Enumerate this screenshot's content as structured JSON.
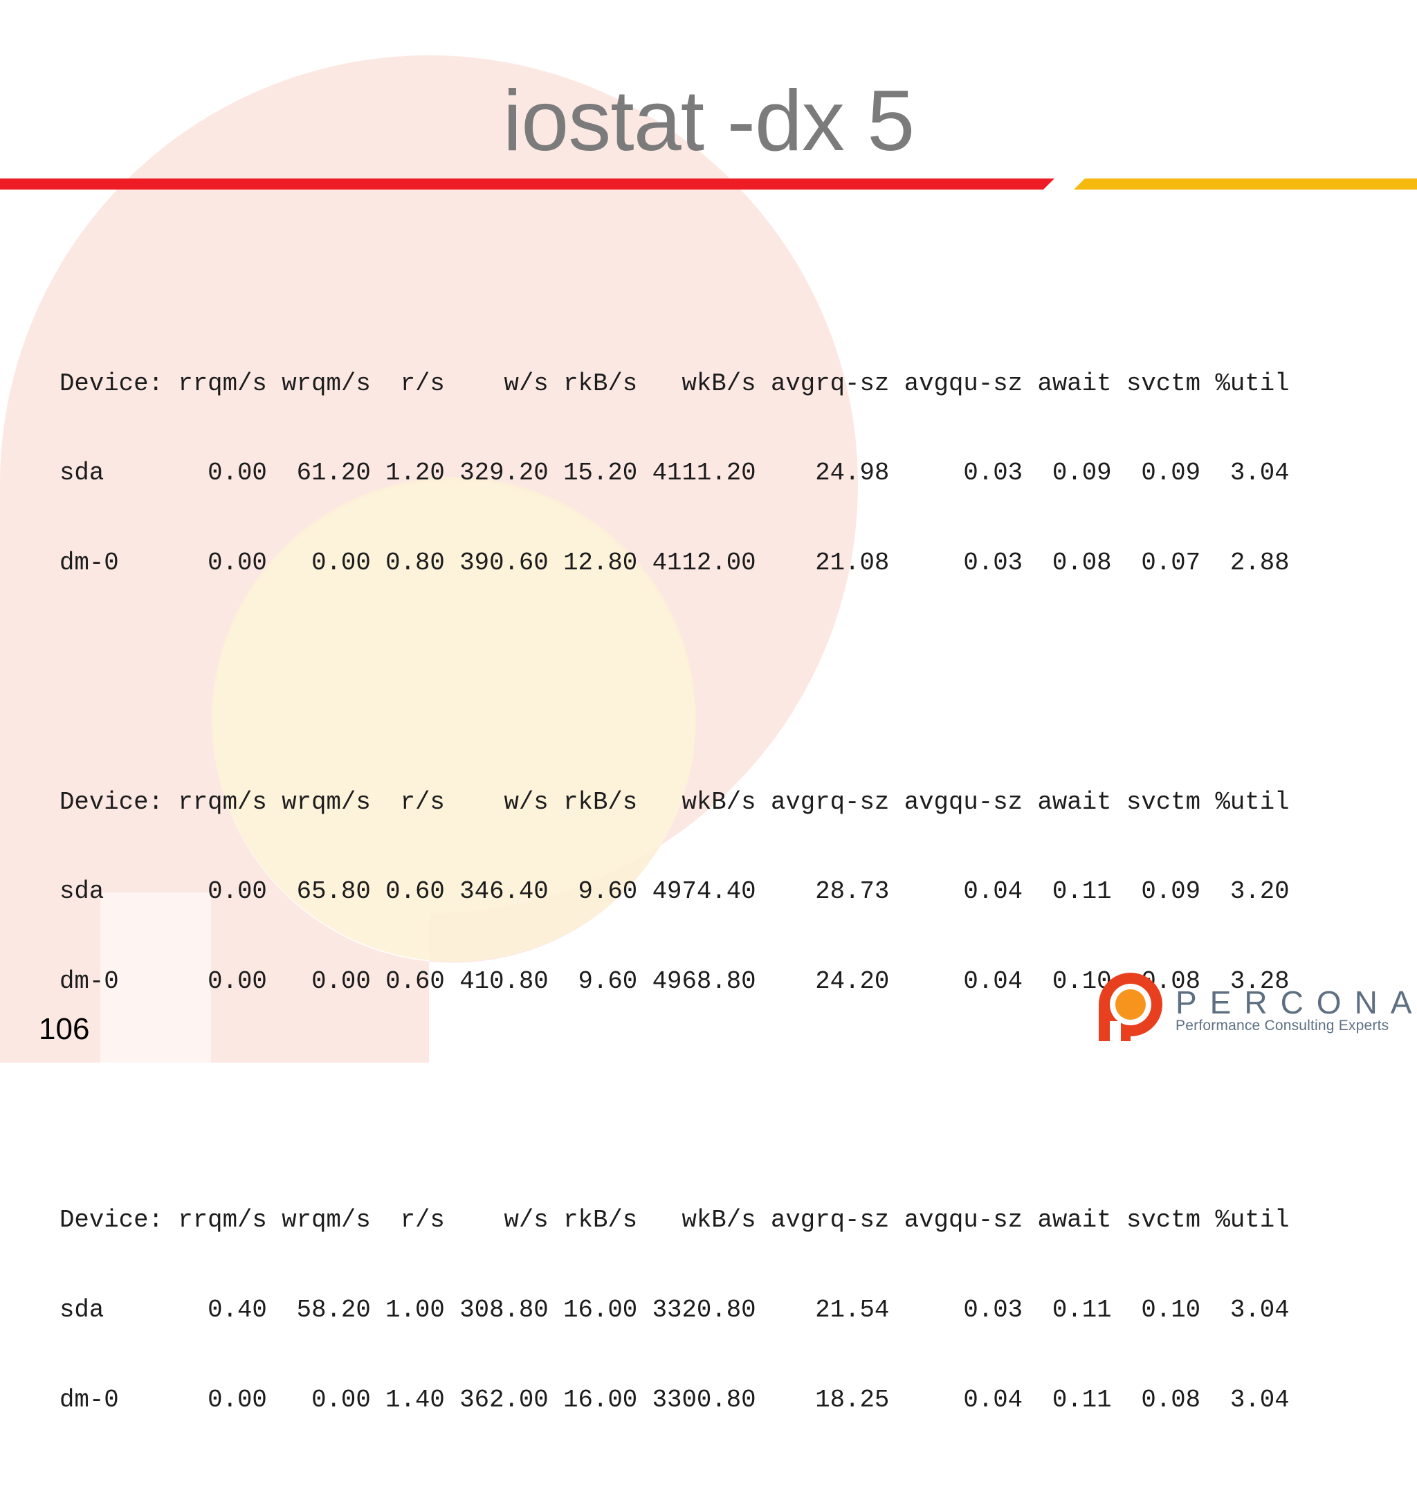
{
  "slide": {
    "title": "iostat -dx 5",
    "page_number": "106"
  },
  "console": {
    "blocks": [
      {
        "lines": [
          "Device: rrqm/s wrqm/s  r/s    w/s rkB/s   wkB/s avgrq-sz avgqu-sz await svctm %util",
          "sda       0.00  61.20 1.20 329.20 15.20 4111.20    24.98     0.03  0.09  0.09  3.04",
          "dm-0      0.00   0.00 0.80 390.60 12.80 4112.00    21.08     0.03  0.08  0.07  2.88"
        ]
      },
      {
        "lines": [
          "Device: rrqm/s wrqm/s  r/s    w/s rkB/s   wkB/s avgrq-sz avgqu-sz await svctm %util",
          "sda       0.00  65.80 0.60 346.40  9.60 4974.40    28.73     0.04  0.11  0.09  3.20",
          "dm-0      0.00   0.00 0.60 410.80  9.60 4968.80    24.20     0.04  0.10  0.08  3.28"
        ]
      },
      {
        "lines": [
          "Device: rrqm/s wrqm/s  r/s    w/s rkB/s   wkB/s avgrq-sz avgqu-sz await svctm %util",
          "sda       0.40  58.20 1.00 308.80 16.00 3320.80    21.54     0.03  0.11  0.10  3.04",
          "dm-0      0.00   0.00 1.40 362.00 16.00 3300.80    18.25     0.04  0.11  0.08  3.04"
        ]
      }
    ]
  },
  "brand": {
    "name": "PERCONA",
    "tagline": "Performance Consulting Experts"
  },
  "colors": {
    "title": "#7b7b7b",
    "bar_red": "#ee1c25",
    "bar_yellow": "#f6b90e",
    "logo_red": "#e8401f",
    "logo_orange": "#f7941d",
    "brand_text": "#5e6f82",
    "watermark_red": "#fbe4de",
    "watermark_yellow": "#fdf1d6"
  }
}
